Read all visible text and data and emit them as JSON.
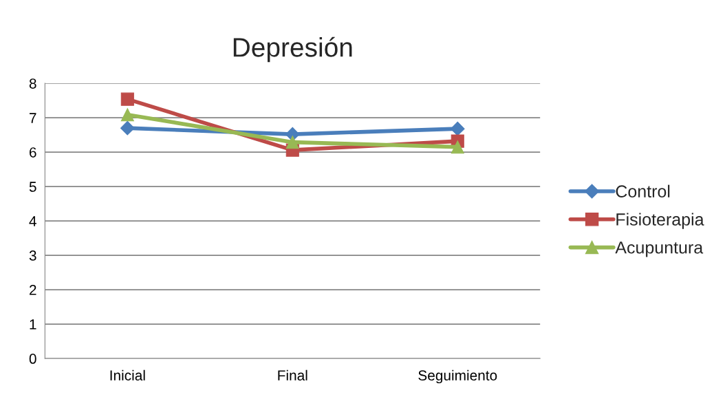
{
  "chart_data": {
    "type": "line",
    "title": "Depresión",
    "categories": [
      "Inicial",
      "Final",
      "Seguimiento"
    ],
    "series": [
      {
        "name": "Control",
        "color": "#4a7ebb",
        "marker": "diamond",
        "values": [
          6.7,
          6.52,
          6.68
        ]
      },
      {
        "name": "Fisioterapia",
        "color": "#be4b48",
        "marker": "square",
        "values": [
          7.54,
          6.06,
          6.32
        ]
      },
      {
        "name": "Acupuntura",
        "color": "#98b954",
        "marker": "triangle",
        "values": [
          7.09,
          6.29,
          6.15
        ]
      }
    ],
    "ylim": [
      0,
      8
    ],
    "yticks": [
      0,
      1,
      2,
      3,
      4,
      5,
      6,
      7,
      8
    ],
    "grid": "y",
    "legend": "right",
    "line_style": "solid"
  }
}
